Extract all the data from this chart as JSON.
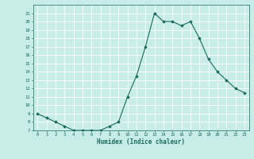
{
  "x": [
    0,
    1,
    2,
    3,
    4,
    5,
    6,
    7,
    8,
    9,
    10,
    11,
    12,
    13,
    14,
    15,
    16,
    17,
    18,
    19,
    20,
    21,
    22,
    23
  ],
  "y": [
    9,
    8.5,
    8,
    7.5,
    7,
    7,
    7,
    7,
    7.5,
    8,
    11,
    13.5,
    17,
    21,
    20,
    20,
    19.5,
    20,
    18,
    15.5,
    14,
    13,
    12,
    11.5
  ],
  "xlabel": "Humidex (Indice chaleur)",
  "line_color": "#1a6b5c",
  "marker_color": "#1a6b5c",
  "bg_color": "#c8ece8",
  "grid_color": "#ffffff",
  "ylim": [
    7,
    22
  ],
  "xlim": [
    -0.5,
    23.5
  ],
  "yticks": [
    7,
    8,
    9,
    10,
    11,
    12,
    13,
    14,
    15,
    16,
    17,
    18,
    19,
    20,
    21
  ],
  "xticks": [
    0,
    1,
    2,
    3,
    4,
    5,
    6,
    7,
    8,
    9,
    10,
    11,
    12,
    13,
    14,
    15,
    16,
    17,
    18,
    19,
    20,
    21,
    22,
    23
  ]
}
